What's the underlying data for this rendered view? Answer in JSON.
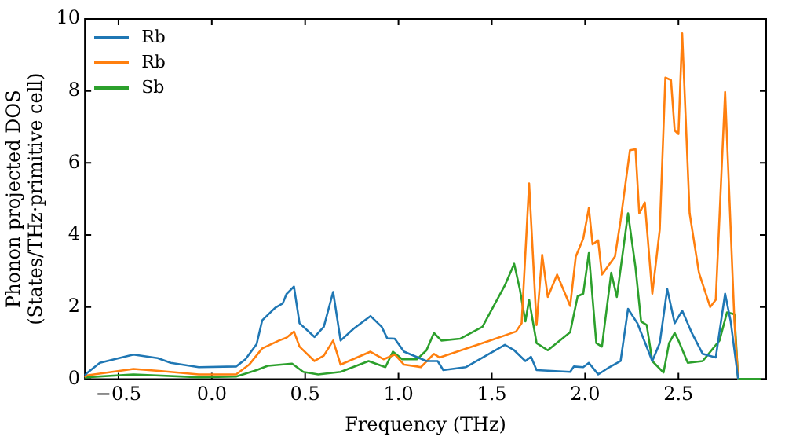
{
  "chart_data": {
    "type": "line",
    "xlabel": "Frequency (THz)",
    "ylabel": "Phonon projected DOS\n(States/THz·primitive cell)",
    "xlim": [
      -0.68,
      2.97
    ],
    "ylim": [
      0,
      10
    ],
    "xticks": [
      {
        "value": -0.5,
        "label": "−0.5"
      },
      {
        "value": 0,
        "label": "0.0"
      },
      {
        "value": 0.5,
        "label": "0.5"
      },
      {
        "value": 1,
        "label": "1.0"
      },
      {
        "value": 1.5,
        "label": "1.5"
      },
      {
        "value": 2,
        "label": "2.0"
      },
      {
        "value": 2.5,
        "label": "2.5"
      }
    ],
    "yticks": [
      0,
      2,
      4,
      6,
      8,
      10
    ],
    "grid": false,
    "legend": "top left",
    "marker": "none",
    "line_style": "solid",
    "series": [
      {
        "name": "Rb",
        "color": "#1f77b4",
        "x": [
          -0.68,
          -0.67,
          -0.6,
          -0.42,
          -0.29,
          -0.22,
          -0.07,
          0.13,
          0.18,
          0.24,
          0.27,
          0.34,
          0.38,
          0.4,
          0.44,
          0.47,
          0.55,
          0.6,
          0.65,
          0.69,
          0.76,
          0.85,
          0.91,
          0.94,
          0.98,
          1.03,
          1.15,
          1.21,
          1.24,
          1.36,
          1.57,
          1.62,
          1.68,
          1.71,
          1.74,
          1.92,
          1.94,
          1.99,
          2.02,
          2.07,
          2.13,
          2.19,
          2.23,
          2.28,
          2.36,
          2.4,
          2.44,
          2.48,
          2.52,
          2.57,
          2.63,
          2.7,
          2.75,
          2.78,
          2.82
        ],
        "values": [
          0.1,
          0.16,
          0.45,
          0.68,
          0.58,
          0.45,
          0.33,
          0.35,
          0.55,
          0.97,
          1.63,
          1.98,
          2.1,
          2.36,
          2.57,
          1.55,
          1.17,
          1.45,
          2.42,
          1.07,
          1.4,
          1.75,
          1.45,
          1.13,
          1.12,
          0.76,
          0.5,
          0.5,
          0.25,
          0.33,
          0.95,
          0.8,
          0.5,
          0.62,
          0.25,
          0.2,
          0.35,
          0.33,
          0.45,
          0.13,
          0.33,
          0.5,
          1.95,
          1.55,
          0.5,
          1.0,
          2.5,
          1.55,
          1.9,
          1.3,
          0.7,
          0.6,
          2.37,
          1.6,
          0
        ]
      },
      {
        "name": "Rb",
        "color": "#ff7f0e",
        "x": [
          -0.68,
          -0.67,
          -0.42,
          -0.27,
          -0.07,
          0.13,
          0.2,
          0.27,
          0.36,
          0.4,
          0.44,
          0.47,
          0.55,
          0.6,
          0.65,
          0.69,
          0.85,
          0.92,
          0.98,
          1.03,
          1.1,
          1.12,
          1.19,
          1.22,
          1.48,
          1.63,
          1.66,
          1.7,
          1.74,
          1.77,
          1.8,
          1.85,
          1.92,
          1.95,
          1.99,
          2.02,
          2.04,
          2.07,
          2.09,
          2.16,
          2.19,
          2.24,
          2.27,
          2.29,
          2.32,
          2.36,
          2.4,
          2.43,
          2.46,
          2.48,
          2.5,
          2.52,
          2.56,
          2.61,
          2.67,
          2.7,
          2.75,
          2.8,
          2.82
        ],
        "values": [
          0.05,
          0.1,
          0.28,
          0.22,
          0.13,
          0.13,
          0.4,
          0.85,
          1.07,
          1.15,
          1.32,
          0.9,
          0.5,
          0.65,
          1.07,
          0.4,
          0.76,
          0.55,
          0.68,
          0.4,
          0.35,
          0.33,
          0.7,
          0.6,
          1.05,
          1.32,
          1.55,
          5.43,
          1.5,
          3.45,
          2.28,
          2.9,
          2.03,
          3.4,
          3.9,
          4.75,
          3.74,
          3.85,
          2.9,
          3.4,
          4.4,
          6.35,
          6.38,
          4.6,
          4.9,
          2.37,
          4.15,
          8.37,
          8.3,
          6.9,
          6.8,
          9.6,
          4.6,
          2.95,
          2.0,
          2.2,
          7.97,
          1.6,
          0
        ]
      },
      {
        "name": "Sb",
        "color": "#2ca02c",
        "x": [
          -0.68,
          -0.67,
          -0.42,
          -0.07,
          0.13,
          0.24,
          0.3,
          0.43,
          0.49,
          0.57,
          0.69,
          0.84,
          0.93,
          0.97,
          1.02,
          1.1,
          1.15,
          1.19,
          1.23,
          1.33,
          1.45,
          1.57,
          1.62,
          1.65,
          1.68,
          1.7,
          1.74,
          1.8,
          1.92,
          1.96,
          1.99,
          2.02,
          2.06,
          2.09,
          2.14,
          2.17,
          2.23,
          2.27,
          2.3,
          2.33,
          2.36,
          2.42,
          2.45,
          2.48,
          2.5,
          2.55,
          2.63,
          2.72,
          2.76,
          2.8,
          2.82,
          2.94
        ],
        "values": [
          0.03,
          0.05,
          0.13,
          0.05,
          0.07,
          0.25,
          0.37,
          0.43,
          0.2,
          0.13,
          0.2,
          0.5,
          0.33,
          0.76,
          0.55,
          0.55,
          0.8,
          1.28,
          1.07,
          1.12,
          1.45,
          2.6,
          3.2,
          2.5,
          1.6,
          2.2,
          1.0,
          0.8,
          1.3,
          2.3,
          2.37,
          3.5,
          1.0,
          0.9,
          2.95,
          2.28,
          4.6,
          3.1,
          1.6,
          1.5,
          0.5,
          0.18,
          1.0,
          1.28,
          1.07,
          0.45,
          0.5,
          1.07,
          1.85,
          1.8,
          0,
          0
        ]
      }
    ]
  }
}
